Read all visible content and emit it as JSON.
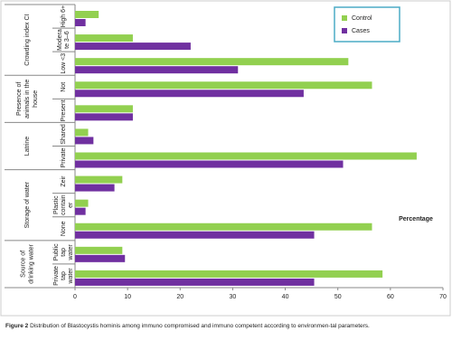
{
  "chart_data": {
    "type": "grouped-hbar",
    "groups": [
      {
        "name": [
          "Crowding index CI"
        ],
        "categories": [
          [
            "High 6+"
          ],
          [
            "Modera",
            "te 3–6"
          ],
          [
            "Low <3"
          ]
        ]
      },
      {
        "name": [
          "Presence of",
          "animals in the",
          "house"
        ],
        "categories": [
          [
            "Not"
          ],
          [
            "Present"
          ]
        ]
      },
      {
        "name": [
          "Latrine"
        ],
        "categories": [
          [
            "Shared"
          ],
          [
            "Private"
          ]
        ]
      },
      {
        "name": [
          "Storage of water"
        ],
        "categories": [
          [
            "Zeir"
          ],
          [
            "Plastic",
            "contain",
            "er"
          ],
          [
            "None"
          ]
        ]
      },
      {
        "name": [
          "Source of",
          "drinking water"
        ],
        "categories": [
          [
            "Public",
            "tap",
            "water"
          ],
          [
            "Private",
            "tap",
            "water"
          ]
        ]
      }
    ],
    "series": [
      {
        "name": "Control",
        "color": "#92d050",
        "values": [
          4.5,
          11,
          52,
          56.5,
          11,
          2.5,
          65,
          9,
          2.5,
          56.5,
          9,
          58.5
        ]
      },
      {
        "name": "Cases",
        "color": "#7030a0",
        "values": [
          2,
          22,
          31,
          43.5,
          11,
          3.5,
          51,
          7.5,
          2,
          45.5,
          9.5,
          45.5
        ]
      }
    ],
    "xlabel": "Percentage",
    "xlim": [
      0,
      70
    ],
    "xticks": [
      0,
      10,
      20,
      30,
      40,
      50,
      60,
      70
    ],
    "legend": "top-right"
  },
  "caption": {
    "label": "Figure 2",
    "text": "Distribution of Blastocystis hominis among immuno compromised and immuno competent according to environmen-tal parameters."
  }
}
